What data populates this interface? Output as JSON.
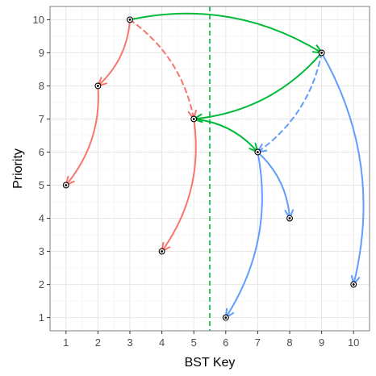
{
  "chart_data": {
    "type": "scatter",
    "xlabel": "BST Key",
    "ylabel": "Priority",
    "xlim": [
      0.5,
      10.5
    ],
    "ylim": [
      0.6,
      10.4
    ],
    "x_ticks": [
      1,
      2,
      3,
      4,
      5,
      6,
      7,
      8,
      9,
      10
    ],
    "y_ticks": [
      1,
      2,
      3,
      4,
      5,
      6,
      7,
      8,
      9,
      10
    ],
    "grid": true,
    "points": [
      {
        "key": 3,
        "priority": 10
      },
      {
        "key": 9,
        "priority": 9
      },
      {
        "key": 2,
        "priority": 8
      },
      {
        "key": 5,
        "priority": 7
      },
      {
        "key": 7,
        "priority": 6
      },
      {
        "key": 1,
        "priority": 5
      },
      {
        "key": 8,
        "priority": 4
      },
      {
        "key": 4,
        "priority": 3
      },
      {
        "key": 10,
        "priority": 2
      },
      {
        "key": 6,
        "priority": 1
      }
    ],
    "vertical_line": {
      "x": 5.5,
      "style": "dashed",
      "color": "#00ba38"
    },
    "colors": {
      "red": "#f8766d",
      "green": "#00ba38",
      "blue": "#619cff"
    },
    "arrows": [
      {
        "from": [
          3,
          10
        ],
        "to": [
          2,
          8
        ],
        "color": "red",
        "dashed": false
      },
      {
        "from": [
          2,
          8
        ],
        "to": [
          1,
          5
        ],
        "color": "red",
        "dashed": false
      },
      {
        "from": [
          3,
          10
        ],
        "to": [
          5,
          7
        ],
        "color": "red",
        "dashed": true
      },
      {
        "from": [
          5,
          7
        ],
        "to": [
          4,
          3
        ],
        "color": "red",
        "dashed": false
      },
      {
        "from": [
          3,
          10
        ],
        "to": [
          9,
          9
        ],
        "color": "green",
        "dashed": false
      },
      {
        "from": [
          9,
          9
        ],
        "to": [
          5,
          7
        ],
        "color": "green",
        "dashed": false
      },
      {
        "from": [
          5,
          7
        ],
        "to": [
          7,
          6
        ],
        "color": "green",
        "dashed": false
      },
      {
        "from": [
          9,
          9
        ],
        "to": [
          7,
          6
        ],
        "color": "blue",
        "dashed": true
      },
      {
        "from": [
          9,
          9
        ],
        "to": [
          10,
          2
        ],
        "color": "blue",
        "dashed": false
      },
      {
        "from": [
          7,
          6
        ],
        "to": [
          8,
          4
        ],
        "color": "blue",
        "dashed": false
      },
      {
        "from": [
          7,
          6
        ],
        "to": [
          6,
          1
        ],
        "color": "blue",
        "dashed": false
      }
    ]
  }
}
